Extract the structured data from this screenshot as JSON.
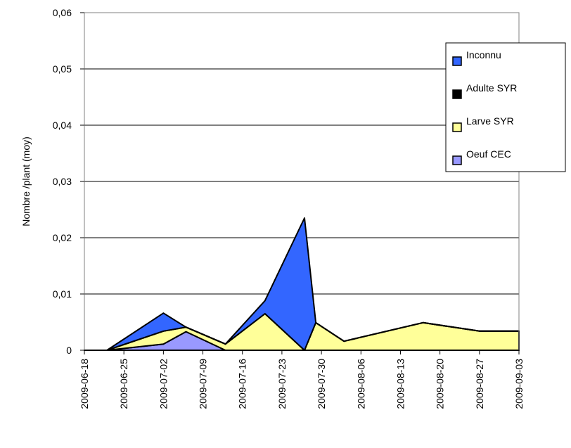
{
  "chart_data": {
    "type": "area",
    "stacked": true,
    "title": "",
    "xlabel": "",
    "ylabel": "Nombre /plant (moy)",
    "ylim": [
      0,
      0.06
    ],
    "yticks": [
      0,
      0.01,
      0.02,
      0.03,
      0.04,
      0.05,
      0.06
    ],
    "ytick_labels": [
      "0",
      "0,01",
      "0,02",
      "0,03",
      "0,04",
      "0,05",
      "0,06"
    ],
    "xlim": [
      "2009-06-18",
      "2009-09-03"
    ],
    "xtick_labels": [
      "2009-06-18",
      "2009-06-25",
      "2009-07-02",
      "2009-07-09",
      "2009-07-16",
      "2009-07-23",
      "2009-07-30",
      "2009-08-06",
      "2009-08-13",
      "2009-08-20",
      "2009-08-27",
      "2009-09-03"
    ],
    "grid": "horizontal",
    "legend_position": "right",
    "x": [
      "2009-06-18",
      "2009-06-22",
      "2009-07-02",
      "2009-07-06",
      "2009-07-13",
      "2009-07-20",
      "2009-07-27",
      "2009-07-29",
      "2009-08-03",
      "2009-08-17",
      "2009-08-27",
      "2009-09-03"
    ],
    "series": [
      {
        "name": "Oeuf CEC",
        "color": "#9999ff",
        "values": [
          0,
          0,
          0.0011,
          0.0033,
          0,
          0,
          0,
          0,
          0,
          0,
          0,
          0
        ]
      },
      {
        "name": "Larve SYR",
        "color": "#ffff99",
        "values": [
          0,
          0,
          0.0023,
          0.0008,
          0.0011,
          0.0065,
          0,
          0.0049,
          0.0016,
          0.0049,
          0.0034,
          0.0034
        ]
      },
      {
        "name": "Adulte SYR",
        "color": "#000000",
        "values": [
          0,
          0,
          0,
          0,
          0,
          0,
          0,
          0,
          0,
          0,
          0,
          0
        ]
      },
      {
        "name": "Inconnu",
        "color": "#3366ff",
        "values": [
          0,
          0,
          0.0032,
          0,
          0,
          0.0023,
          0.0235,
          0,
          0,
          0,
          0,
          0
        ]
      }
    ],
    "legend_order": [
      "Inconnu",
      "Adulte SYR",
      "Larve SYR",
      "Oeuf CEC"
    ]
  }
}
